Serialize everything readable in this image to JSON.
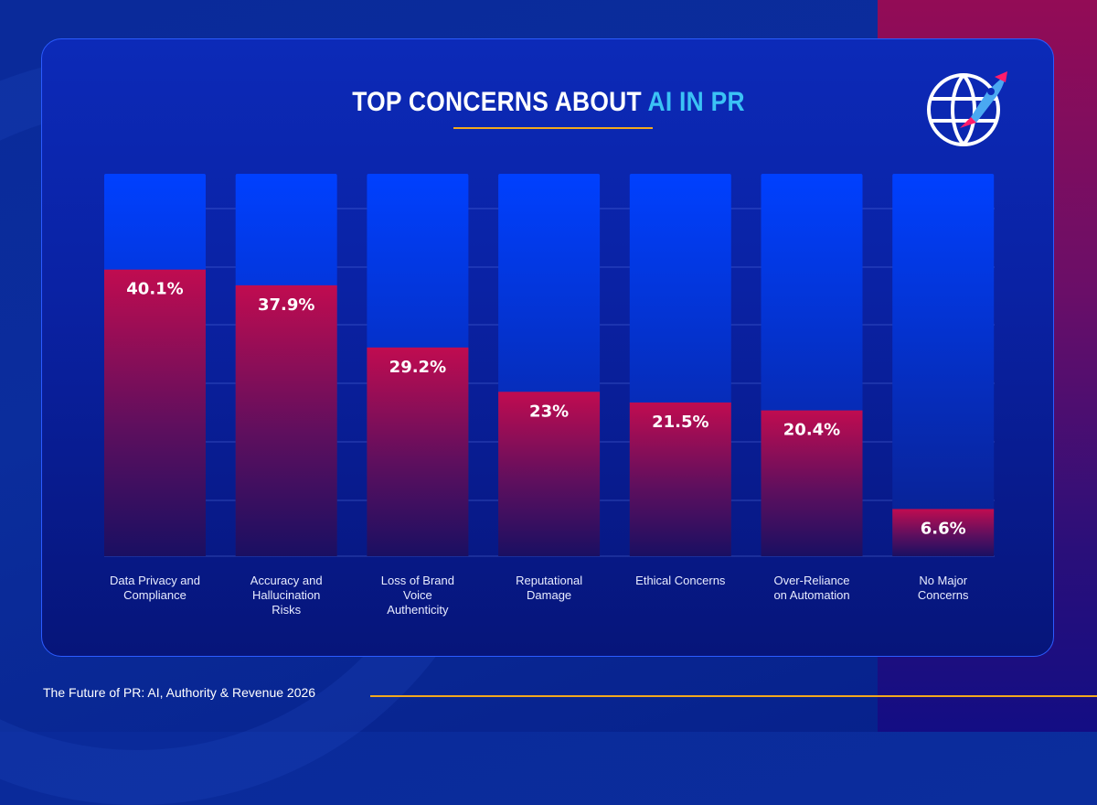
{
  "title": {
    "main": "TOP CONCERNS ABOUT ",
    "accent": "AI IN PR"
  },
  "logo": {
    "icon": "globe-rocket-icon"
  },
  "footer": {
    "text": "The Future of PR: AI, Authority & Revenue 2026"
  },
  "colors": {
    "title_accent": "#3bc2f5",
    "underline": "#f2a81d",
    "bar_fill_top": "#c00c50",
    "bar_track_top": "#0040ff"
  },
  "chart_data": {
    "type": "bar",
    "title": "TOP CONCERNS ABOUT AI IN PR",
    "xlabel": "",
    "ylabel": "",
    "categories": [
      "Data Privacy and Compliance",
      "Accuracy and Hallucination Risks",
      "Loss of Brand Voice Authenticity",
      "Reputational Damage",
      "Ethical Concerns",
      "Over-Reliance on Automation",
      "No Major Concerns"
    ],
    "category_lines": [
      [
        "Data Privacy and",
        "Compliance"
      ],
      [
        "Accuracy and",
        "Hallucination",
        "Risks"
      ],
      [
        "Loss of Brand",
        "Voice",
        "Authenticity"
      ],
      [
        "Reputational",
        "Damage"
      ],
      [
        "Ethical Concerns"
      ],
      [
        "Over-Reliance",
        "on Automation"
      ],
      [
        "No Major",
        "Concerns"
      ]
    ],
    "values": [
      40.1,
      37.9,
      29.2,
      23,
      21.5,
      20.4,
      6.6
    ],
    "labels": [
      "40.1%",
      "37.9%",
      "29.2%",
      "23%",
      "21.5%",
      "20.4%",
      "6.6%"
    ],
    "unit": "%",
    "ylim": [
      0,
      53.5
    ],
    "grid": true,
    "legend": "none"
  }
}
